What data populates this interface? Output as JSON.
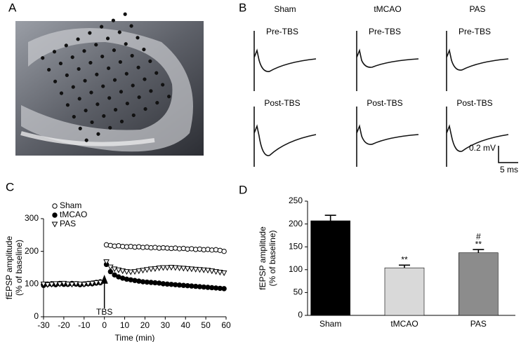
{
  "panel_labels": [
    "A",
    "B",
    "C",
    "D"
  ],
  "traces": {
    "groups": [
      "Sham",
      "tMCAO",
      "PAS"
    ],
    "rows": [
      "Pre-TBS",
      "Post-TBS"
    ],
    "scale_bar": {
      "voltage": "0.2 mV",
      "time": "5 ms"
    }
  },
  "chart_data": [
    {
      "type": "scatter",
      "xlabel": "Time (min)",
      "ylabel": [
        "fEPSP amplitude",
        "(% of baseline)"
      ],
      "x": [
        -30,
        -28,
        -26,
        -24,
        -22,
        -20,
        -18,
        -16,
        -14,
        -12,
        -10,
        -8,
        -6,
        -4,
        -2,
        1,
        3,
        5,
        7,
        9,
        11,
        13,
        15,
        17,
        19,
        21,
        23,
        25,
        27,
        29,
        31,
        33,
        35,
        37,
        39,
        41,
        43,
        45,
        47,
        49,
        51,
        53,
        55,
        57,
        59
      ],
      "series": [
        {
          "name": "Sham",
          "color": "#000000",
          "marker": "circle-open",
          "values": [
            98,
            100,
            101,
            99,
            102,
            100,
            99,
            101,
            100,
            98,
            100,
            102,
            101,
            103,
            104,
            220,
            218,
            216,
            217,
            215,
            214,
            215,
            213,
            214,
            212,
            213,
            211,
            212,
            210,
            211,
            210,
            209,
            210,
            208,
            209,
            207,
            208,
            206,
            207,
            205,
            206,
            204,
            205,
            203,
            200
          ]
        },
        {
          "name": "tMCAO",
          "color": "#000000",
          "marker": "circle-filled",
          "values": [
            96,
            99,
            100,
            98,
            101,
            99,
            100,
            102,
            101,
            99,
            100,
            101,
            103,
            105,
            107,
            160,
            138,
            128,
            122,
            118,
            115,
            113,
            111,
            109,
            107,
            106,
            105,
            104,
            103,
            101,
            100,
            99,
            98,
            97,
            96,
            95,
            94,
            93,
            92,
            91,
            90,
            89,
            88,
            87,
            86
          ]
        },
        {
          "name": "PAS",
          "color": "#000000",
          "marker": "triangle-down-open",
          "values": [
            100,
            98,
            99,
            101,
            100,
            102,
            100,
            99,
            101,
            100,
            99,
            101,
            102,
            104,
            105,
            168,
            152,
            146,
            143,
            140,
            138,
            137,
            138,
            140,
            142,
            144,
            146,
            147,
            149,
            150,
            150,
            151,
            150,
            149,
            148,
            147,
            146,
            145,
            144,
            143,
            142,
            140,
            138,
            136,
            134
          ]
        }
      ],
      "xlim": [
        -30,
        60
      ],
      "xticks": [
        -30,
        -20,
        -10,
        0,
        10,
        20,
        30,
        40,
        50,
        60
      ],
      "ylim": [
        0,
        300
      ],
      "yticks": [
        0,
        100,
        200,
        300
      ],
      "legend": "upper-left",
      "annotation": {
        "text": "TBS",
        "x": 0
      }
    },
    {
      "type": "bar",
      "ylabel": [
        "fEPSP amplitude",
        "(% of baseline)"
      ],
      "categories": [
        "Sham",
        "tMCAO",
        "PAS"
      ],
      "values": [
        207,
        104,
        137
      ],
      "errors": [
        12,
        6,
        7
      ],
      "colors": [
        "#000000",
        "#d9d9d9",
        "#8c8c8c"
      ],
      "ylim": [
        0,
        250
      ],
      "yticks": [
        0,
        50,
        100,
        150,
        200,
        250
      ],
      "annotations": [
        {
          "text": "**",
          "category": "tMCAO"
        },
        {
          "text": "**",
          "category": "PAS"
        },
        {
          "text": "#",
          "category": "PAS"
        }
      ]
    }
  ]
}
